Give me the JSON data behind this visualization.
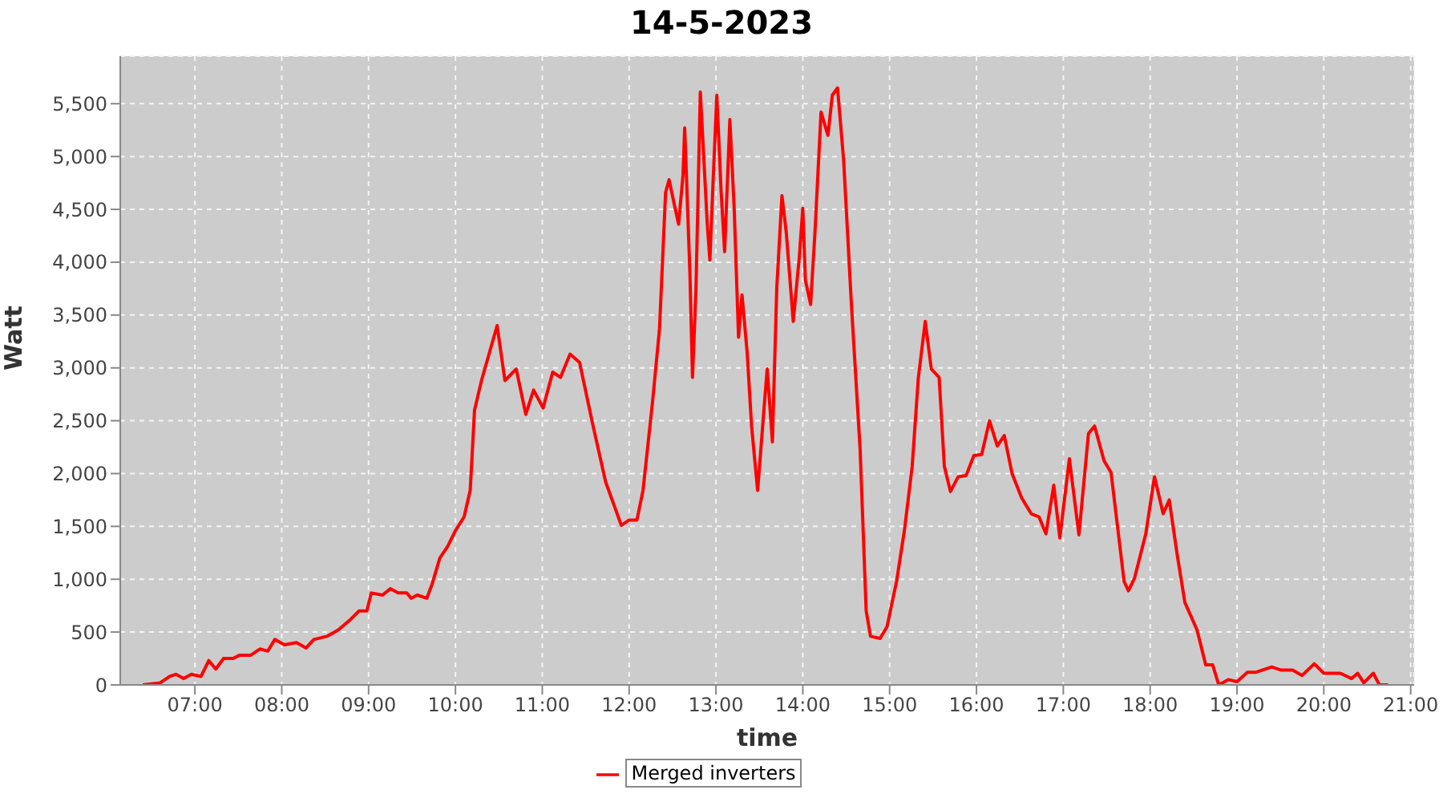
{
  "chart_data": {
    "type": "line",
    "title": "14-5-2023",
    "xlabel": "time",
    "ylabel": "Watt",
    "legend": "bottom",
    "grid": true,
    "xlim": [
      6.14,
      21.04
    ],
    "xticks": [
      {
        "value": 7,
        "label": "07:00"
      },
      {
        "value": 8,
        "label": "08:00"
      },
      {
        "value": 9,
        "label": "09:00"
      },
      {
        "value": 10,
        "label": "10:00"
      },
      {
        "value": 11,
        "label": "11:00"
      },
      {
        "value": 12,
        "label": "12:00"
      },
      {
        "value": 13,
        "label": "13:00"
      },
      {
        "value": 14,
        "label": "14:00"
      },
      {
        "value": 15,
        "label": "15:00"
      },
      {
        "value": 16,
        "label": "16:00"
      },
      {
        "value": 17,
        "label": "17:00"
      },
      {
        "value": 18,
        "label": "18:00"
      },
      {
        "value": 19,
        "label": "19:00"
      },
      {
        "value": 20,
        "label": "20:00"
      },
      {
        "value": 21,
        "label": "21:00"
      }
    ],
    "ylim": [
      0,
      5950
    ],
    "yticks": [
      0,
      500,
      {
        "value": 1000,
        "label": "1,000"
      },
      {
        "value": 1500,
        "label": "1,500"
      },
      {
        "value": 2000,
        "label": "2,000"
      },
      {
        "value": 2500,
        "label": "2,500"
      },
      {
        "value": 3000,
        "label": "3,000"
      },
      {
        "value": 3500,
        "label": "3,500"
      },
      {
        "value": 4000,
        "label": "4,000"
      },
      {
        "value": 4500,
        "label": "4,500"
      },
      {
        "value": 5000,
        "label": "5,000"
      },
      {
        "value": 5500,
        "label": "5,500"
      }
    ],
    "x": [
      6.4,
      6.6,
      6.71,
      6.78,
      6.87,
      6.96,
      7.07,
      7.16,
      7.24,
      7.33,
      7.44,
      7.51,
      7.64,
      7.75,
      7.84,
      7.92,
      8.03,
      8.17,
      8.28,
      8.37,
      8.52,
      8.65,
      8.78,
      8.89,
      8.98,
      9.03,
      9.16,
      9.25,
      9.34,
      9.44,
      9.49,
      9.56,
      9.67,
      9.73,
      9.82,
      9.91,
      10.0,
      10.1,
      10.17,
      10.22,
      10.3,
      10.39,
      10.48,
      10.57,
      10.7,
      10.81,
      10.9,
      11.01,
      11.12,
      11.21,
      11.32,
      11.43,
      11.58,
      11.73,
      11.91,
      12.0,
      12.09,
      12.16,
      12.27,
      12.35,
      12.42,
      12.46,
      12.53,
      12.57,
      12.62,
      12.64,
      12.7,
      12.73,
      12.77,
      12.82,
      12.9,
      12.93,
      12.97,
      13.01,
      13.06,
      13.1,
      13.16,
      13.21,
      13.26,
      13.3,
      13.36,
      13.41,
      13.48,
      13.56,
      13.59,
      13.65,
      13.7,
      13.76,
      13.81,
      13.89,
      13.96,
      14.0,
      14.03,
      14.09,
      14.14,
      14.21,
      14.29,
      14.34,
      14.4,
      14.47,
      14.56,
      14.66,
      14.73,
      14.78,
      14.89,
      14.97,
      15.08,
      15.17,
      15.26,
      15.33,
      15.41,
      15.48,
      15.57,
      15.63,
      15.7,
      15.79,
      15.88,
      15.97,
      16.06,
      16.15,
      16.24,
      16.32,
      16.41,
      16.52,
      16.63,
      16.72,
      16.8,
      16.89,
      16.96,
      17.07,
      17.18,
      17.29,
      17.36,
      17.47,
      17.55,
      17.7,
      17.75,
      17.82,
      17.95,
      18.05,
      18.15,
      18.22,
      18.31,
      18.4,
      18.54,
      18.64,
      18.72,
      18.79,
      18.9,
      19.0,
      19.12,
      19.22,
      19.4,
      19.51,
      19.64,
      19.75,
      19.89,
      20.0,
      20.19,
      20.32,
      20.39,
      20.46,
      20.57,
      20.64,
      20.74
    ],
    "series": [
      {
        "name": "Merged inverters",
        "color": "#ff0000",
        "values": [
          0,
          20,
          80,
          100,
          60,
          100,
          80,
          230,
          150,
          250,
          250,
          280,
          280,
          340,
          320,
          430,
          380,
          400,
          350,
          430,
          460,
          520,
          610,
          700,
          700,
          870,
          850,
          910,
          870,
          870,
          820,
          850,
          820,
          950,
          1200,
          1310,
          1460,
          1590,
          1840,
          2600,
          2880,
          3140,
          3400,
          2880,
          2990,
          2560,
          2790,
          2620,
          2960,
          2910,
          3130,
          3050,
          2470,
          1920,
          1510,
          1560,
          1560,
          1840,
          2680,
          3370,
          4660,
          4780,
          4510,
          4360,
          4820,
          5270,
          3900,
          2910,
          3750,
          5610,
          4360,
          4020,
          4820,
          5580,
          4660,
          4100,
          5350,
          4510,
          3290,
          3690,
          3140,
          2450,
          1840,
          2680,
          2990,
          2300,
          3750,
          4630,
          4280,
          3440,
          4050,
          4510,
          3830,
          3600,
          4280,
          5420,
          5200,
          5580,
          5650,
          4970,
          3600,
          2230,
          700,
          460,
          440,
          550,
          980,
          1460,
          2070,
          2900,
          3440,
          2990,
          2910,
          2070,
          1830,
          1970,
          1980,
          2170,
          2180,
          2500,
          2260,
          2360,
          2000,
          1770,
          1620,
          1590,
          1430,
          1890,
          1390,
          2140,
          1420,
          2380,
          2450,
          2120,
          2010,
          980,
          890,
          1010,
          1430,
          1970,
          1620,
          1750,
          1240,
          780,
          520,
          190,
          190,
          0,
          50,
          30,
          120,
          120,
          170,
          140,
          140,
          90,
          200,
          110,
          110,
          60,
          110,
          20,
          110,
          0,
          0
        ]
      }
    ]
  }
}
